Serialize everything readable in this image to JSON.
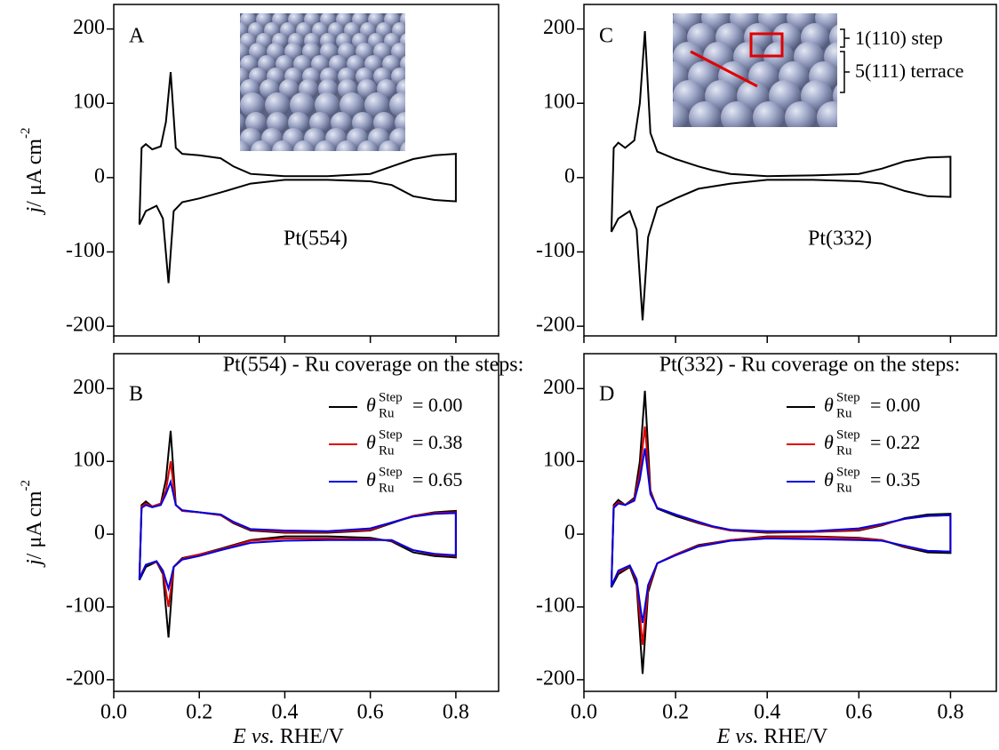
{
  "chart_data": [
    {
      "type": "line",
      "panel_label": "A",
      "xlim": [
        0,
        0.9
      ],
      "ylim": [
        -213,
        233
      ],
      "xticks": [
        {
          "value": 0,
          "label": "0.0"
        },
        0.2,
        0.4,
        0.6,
        0.8
      ],
      "show_xtick_labels": false,
      "yticks": [
        -200,
        -100,
        0,
        100,
        200
      ],
      "y_label": [
        "j",
        "/ μA cm",
        "-2"
      ],
      "annotations": [
        "Pt(554)"
      ],
      "x": [
        0.06,
        0.065,
        0.075,
        0.09,
        0.11,
        0.122,
        0.133,
        0.145,
        0.16,
        0.2,
        0.25,
        0.28,
        0.32,
        0.4,
        0.5,
        0.6,
        0.65,
        0.7,
        0.75,
        0.8,
        0.8,
        0.75,
        0.7,
        0.65,
        0.6,
        0.5,
        0.4,
        0.32,
        0.25,
        0.2,
        0.16,
        0.14,
        0.128,
        0.115,
        0.1,
        0.075,
        0.06
      ],
      "series": [
        {
          "color": "#000000",
          "values": [
            -60,
            40,
            45,
            38,
            42,
            75,
            142,
            40,
            32,
            30,
            26,
            15,
            5,
            2,
            2,
            5,
            15,
            25,
            30,
            32,
            -32,
            -30,
            -25,
            -10,
            -5,
            -3,
            -3,
            -8,
            -20,
            -28,
            -33,
            -45,
            -142,
            -55,
            -38,
            -45,
            -63
          ]
        }
      ]
    },
    {
      "type": "line",
      "panel_label": "B",
      "xlim": [
        0,
        0.9
      ],
      "ylim": [
        -216,
        248
      ],
      "xticks": [
        {
          "value": 0,
          "label": "0.0"
        },
        0.2,
        0.4,
        0.6,
        0.8
      ],
      "show_xtick_labels": true,
      "yticks": [
        -200,
        -100,
        0,
        100,
        200
      ],
      "y_label": [
        "j",
        "/ μA cm",
        "-2"
      ],
      "x_label": [
        "E",
        " vs.",
        " RHE/V"
      ],
      "annotations": [
        "Pt(554) - Ru coverage on the steps:"
      ],
      "legend_symbol": [
        "θ",
        "Ru",
        "Step"
      ],
      "x": [
        0.06,
        0.065,
        0.075,
        0.09,
        0.11,
        0.122,
        0.133,
        0.145,
        0.16,
        0.2,
        0.25,
        0.28,
        0.32,
        0.4,
        0.5,
        0.6,
        0.65,
        0.7,
        0.75,
        0.8,
        0.8,
        0.75,
        0.7,
        0.65,
        0.6,
        0.5,
        0.4,
        0.32,
        0.25,
        0.2,
        0.16,
        0.14,
        0.128,
        0.115,
        0.1,
        0.075,
        0.06
      ],
      "series": [
        {
          "name": "= 0.00",
          "color": "#000000",
          "values": [
            -60,
            40,
            45,
            38,
            42,
            75,
            142,
            40,
            32,
            30,
            26,
            15,
            5,
            2,
            2,
            5,
            15,
            25,
            30,
            32,
            -32,
            -30,
            -25,
            -10,
            -5,
            -3,
            -3,
            -8,
            -20,
            -28,
            -33,
            -45,
            -142,
            -55,
            -38,
            -45,
            -63
          ]
        },
        {
          "name": "= 0.38",
          "color": "#e00000",
          "values": [
            -58,
            38,
            42,
            38,
            42,
            60,
            100,
            40,
            32,
            30,
            26,
            16,
            6,
            3,
            3,
            6,
            16,
            25,
            29,
            30,
            -30,
            -28,
            -22,
            -9,
            -7,
            -6,
            -6,
            -9,
            -21,
            -28,
            -34,
            -45,
            -100,
            -52,
            -38,
            -42,
            -60
          ]
        },
        {
          "name": "= 0.65",
          "color": "#0000e0",
          "values": [
            -62,
            36,
            40,
            37,
            40,
            55,
            72,
            40,
            33,
            30,
            27,
            17,
            7,
            5,
            4,
            8,
            16,
            24,
            28,
            29,
            -29,
            -27,
            -22,
            -8,
            -8,
            -8,
            -9,
            -12,
            -22,
            -30,
            -35,
            -45,
            -75,
            -50,
            -37,
            -42,
            -62
          ]
        }
      ]
    },
    {
      "type": "line",
      "panel_label": "C",
      "xlim": [
        0,
        0.9
      ],
      "ylim": [
        -213,
        233
      ],
      "xticks": [
        {
          "value": 0,
          "label": "0.0"
        },
        0.2,
        0.4,
        0.6,
        0.8
      ],
      "show_xtick_labels": false,
      "yticks": [
        -200,
        -100,
        0,
        100,
        200
      ],
      "y_label": [
        "j",
        "/ μA cm",
        "-2"
      ],
      "annotations": [
        "Pt(332)",
        "1(110) step",
        "5(111) terrace"
      ],
      "x": [
        0.06,
        0.065,
        0.075,
        0.09,
        0.11,
        0.122,
        0.133,
        0.145,
        0.16,
        0.2,
        0.25,
        0.28,
        0.32,
        0.4,
        0.5,
        0.6,
        0.65,
        0.7,
        0.75,
        0.8,
        0.8,
        0.75,
        0.7,
        0.65,
        0.6,
        0.5,
        0.4,
        0.32,
        0.25,
        0.2,
        0.16,
        0.14,
        0.128,
        0.115,
        0.1,
        0.075,
        0.06
      ],
      "series": [
        {
          "color": "#000000",
          "values": [
            -73,
            40,
            47,
            40,
            50,
            100,
            197,
            60,
            35,
            25,
            15,
            10,
            5,
            2,
            3,
            5,
            12,
            22,
            27,
            28,
            -26,
            -25,
            -18,
            -8,
            -5,
            -3,
            -3,
            -8,
            -15,
            -28,
            -40,
            -80,
            -192,
            -70,
            -45,
            -55,
            -73
          ]
        }
      ]
    },
    {
      "type": "line",
      "panel_label": "D",
      "xlim": [
        0,
        0.9
      ],
      "ylim": [
        -216,
        248
      ],
      "xticks": [
        {
          "value": 0,
          "label": "0.0"
        },
        0.2,
        0.4,
        0.6,
        0.8
      ],
      "show_xtick_labels": true,
      "yticks": [
        -200,
        -100,
        0,
        100,
        200
      ],
      "y_label": [
        "j",
        "/ μA cm",
        "-2"
      ],
      "x_label": [
        "E",
        " vs.",
        " RHE/V"
      ],
      "annotations": [
        "Pt(332) - Ru coverage on the steps:"
      ],
      "legend_symbol": [
        "θ",
        "Ru",
        "Step"
      ],
      "x": [
        0.06,
        0.065,
        0.075,
        0.09,
        0.11,
        0.122,
        0.133,
        0.145,
        0.16,
        0.2,
        0.25,
        0.28,
        0.32,
        0.4,
        0.5,
        0.6,
        0.65,
        0.7,
        0.75,
        0.8,
        0.8,
        0.75,
        0.7,
        0.65,
        0.6,
        0.5,
        0.4,
        0.32,
        0.25,
        0.2,
        0.16,
        0.14,
        0.128,
        0.115,
        0.1,
        0.075,
        0.06
      ],
      "series": [
        {
          "name": "= 0.00",
          "color": "#000000",
          "values": [
            -73,
            40,
            47,
            40,
            50,
            100,
            197,
            60,
            35,
            25,
            15,
            10,
            5,
            2,
            3,
            5,
            12,
            22,
            27,
            28,
            -26,
            -25,
            -18,
            -8,
            -5,
            -3,
            -3,
            -8,
            -15,
            -28,
            -40,
            -80,
            -192,
            -70,
            -45,
            -55,
            -73
          ]
        },
        {
          "name": "= 0.22",
          "color": "#e00000",
          "values": [
            -70,
            38,
            44,
            40,
            48,
            85,
            148,
            58,
            36,
            27,
            16,
            10,
            5,
            3,
            3,
            6,
            13,
            21,
            25,
            26,
            -24,
            -23,
            -17,
            -8,
            -6,
            -4,
            -4,
            -8,
            -16,
            -28,
            -40,
            -75,
            -152,
            -65,
            -44,
            -52,
            -70
          ]
        },
        {
          "name": "= 0.35",
          "color": "#0000e0",
          "values": [
            -72,
            36,
            42,
            40,
            46,
            75,
            118,
            55,
            36,
            27,
            17,
            11,
            6,
            4,
            4,
            8,
            14,
            21,
            25,
            26,
            -24,
            -23,
            -16,
            -9,
            -8,
            -7,
            -6,
            -9,
            -17,
            -29,
            -40,
            -70,
            -122,
            -62,
            -43,
            -50,
            -72
          ]
        }
      ]
    }
  ]
}
